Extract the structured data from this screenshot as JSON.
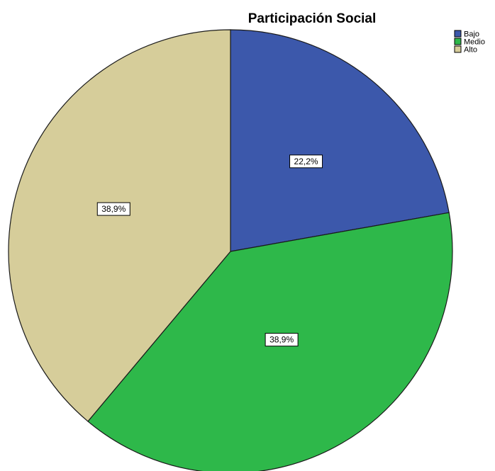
{
  "chart_data": {
    "type": "pie",
    "title": "Participación Social",
    "categories": [
      "Bajo",
      "Medio",
      "Alto"
    ],
    "values": [
      22.2,
      38.9,
      38.9
    ],
    "labels": [
      "22,2%",
      "38,9%",
      "38,9%"
    ],
    "colors": [
      "#3c58ab",
      "#2eb84a",
      "#d6cd9a"
    ],
    "start_angle": "12 o'clock",
    "direction": "clockwise",
    "legend": {
      "placement": "top-right",
      "entries": [
        "Bajo",
        "Medio",
        "Alto"
      ]
    }
  }
}
